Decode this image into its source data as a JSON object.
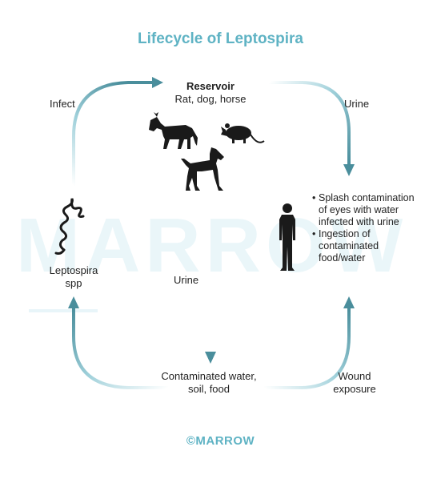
{
  "title": "Lifecycle of Leptospira",
  "reservoir": {
    "heading": "Reservoir",
    "animals": "Rat, dog, horse"
  },
  "arrows": {
    "infect": "Infect",
    "urine_top": "Urine",
    "urine_mid": "Urine",
    "wound": "Wound exposure"
  },
  "nodes": {
    "leptospira": "Leptospira spp",
    "contaminated": "Contaminated water, soil, food"
  },
  "routes": [
    "Splash contamination of eyes with water infected with urine",
    "Ingestion of contaminated food/water"
  ],
  "watermark": "MARROW",
  "brand": "©MARROW",
  "colors": {
    "accent": "#5fb3c4",
    "arrow": "#4a8e9c",
    "silhouette": "#1a1a1a"
  },
  "icons": [
    "horse-icon",
    "rat-icon",
    "dog-icon",
    "human-icon",
    "bacteria-spiral-icon"
  ]
}
